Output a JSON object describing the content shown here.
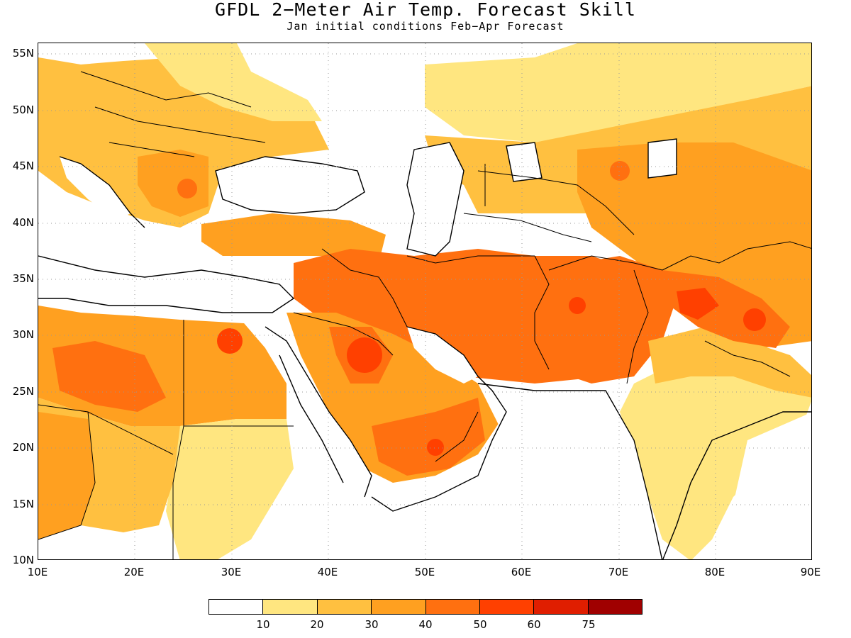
{
  "title": "GFDL 2−Meter Air Temp. Forecast Skill",
  "subtitle": "Jan initial conditions  Feb−Apr Forecast",
  "map": {
    "lon_range": [
      10,
      90
    ],
    "lat_range": [
      10,
      56
    ],
    "lat_ticks": [
      "55N",
      "50N",
      "45N",
      "40N",
      "35N",
      "30N",
      "25N",
      "20N",
      "15N",
      "10N"
    ],
    "lon_ticks": [
      "10E",
      "20E",
      "30E",
      "40E",
      "50E",
      "60E",
      "70E",
      "80E",
      "90E"
    ],
    "gridlines": "dotted"
  },
  "colorbar": {
    "colors": [
      "#ffffff",
      "#ffe680",
      "#ffc040",
      "#ffa020",
      "#ff7010",
      "#ff4000",
      "#e01e00",
      "#a00000"
    ],
    "labels": [
      "10",
      "20",
      "30",
      "40",
      "50",
      "60",
      "75"
    ]
  }
}
